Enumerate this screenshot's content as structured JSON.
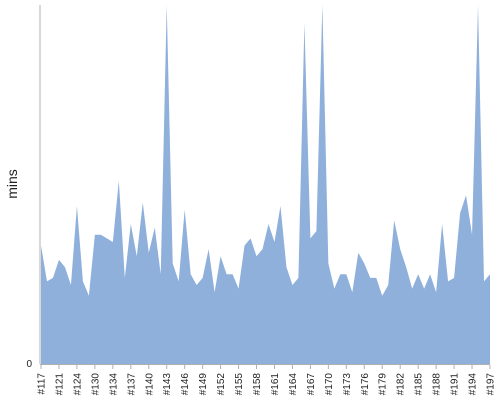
{
  "chart_data": {
    "type": "area",
    "ylabel": "mins",
    "xlabel": "",
    "y_tick_labels": [
      "0"
    ],
    "ylim": [
      0,
      100
    ],
    "grid": false,
    "legend": "none",
    "colors": {
      "area_fill": "#8eb0db",
      "axis_line": "#b0b0b0",
      "text": "#222222"
    },
    "x_tick_labels": [
      "#117",
      "#121",
      "#124",
      "#130",
      "#134",
      "#137",
      "#140",
      "#143",
      "#146",
      "#149",
      "#152",
      "#155",
      "#158",
      "#161",
      "#164",
      "#167",
      "#170",
      "#173",
      "#176",
      "#179",
      "#182",
      "#185",
      "#188",
      "#191",
      "#194",
      "#197"
    ],
    "series": [
      {
        "values": [
          33,
          23,
          24,
          29,
          27,
          22,
          44,
          23,
          19,
          36,
          36,
          35,
          34,
          51,
          24,
          39,
          30,
          45,
          31,
          38,
          25,
          100,
          28,
          23,
          43,
          25,
          22,
          24,
          32,
          20,
          30,
          25,
          25,
          21,
          33,
          35,
          30,
          32,
          39,
          34,
          44,
          27,
          22,
          24,
          95,
          35,
          37,
          100,
          28,
          21,
          25,
          25,
          20,
          31,
          28,
          24,
          24,
          19,
          22,
          40,
          32,
          27,
          21,
          25,
          21,
          25,
          20,
          39,
          23,
          24,
          42,
          47,
          36,
          100,
          23,
          25
        ]
      }
    ]
  }
}
